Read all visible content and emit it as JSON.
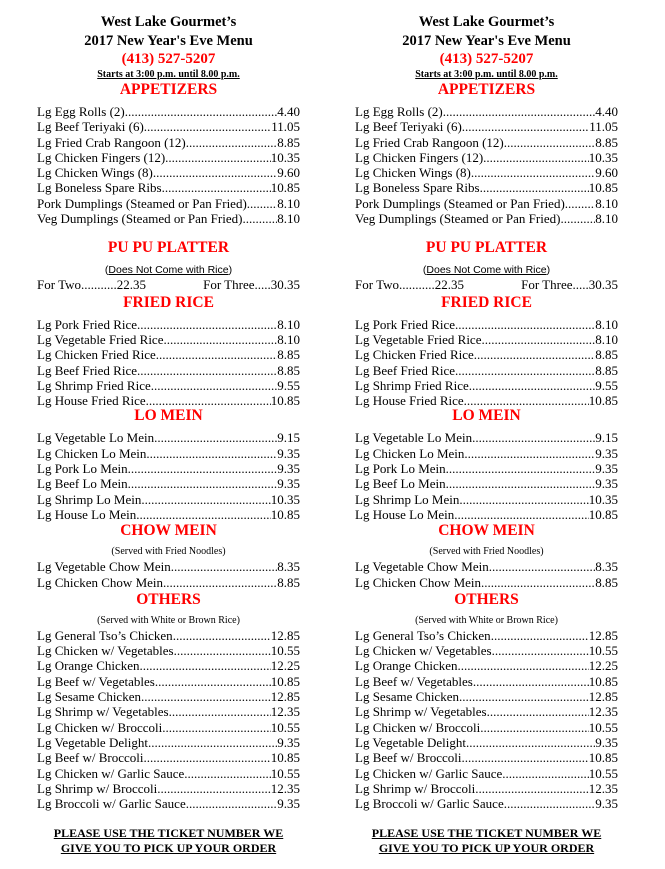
{
  "header": {
    "title_line1": "West Lake Gourmet’s",
    "title_line2": "2017 New Year's Eve Menu",
    "phone": "(413) 527-5207",
    "hours": "Starts at 3:00 p.m. until 8.00 p.m."
  },
  "colors": {
    "heading": "#ff0000",
    "text": "#000000"
  },
  "appetizers": {
    "heading": "APPETIZERS",
    "items": [
      {
        "name": "Lg Egg Rolls (2) ",
        "price": "4.40"
      },
      {
        "name": "Lg Beef Teriyaki (6) ",
        "price": "11.05"
      },
      {
        "name": "Lg Fried Crab Rangoon (12) ",
        "price": "8.85"
      },
      {
        "name": "Lg Chicken Fingers (12) ",
        "price": "10.35"
      },
      {
        "name": "Lg Chicken Wings (8) ",
        "price": "9.60"
      },
      {
        "name": "Lg Boneless Spare Ribs",
        "price": "10.85"
      },
      {
        "name": "Pork Dumplings (Steamed or Pan Fried) ",
        "price": " 8.10"
      },
      {
        "name": "Veg Dumplings (Steamed or Pan Fried) ",
        "price": " 8.10"
      }
    ]
  },
  "pupu": {
    "heading": "PU PU PLATTER",
    "note": "Does Not Come with Rice",
    "two_label": "For Two",
    "two_price": "22.35",
    "three_label": "For Three",
    "three_price": "30.35"
  },
  "fried_rice": {
    "heading": "FRIED RICE",
    "items": [
      {
        "name": "Lg Pork Fried Rice",
        "price": "8.10"
      },
      {
        "name": "Lg Vegetable Fried Rice",
        "price": "8.10"
      },
      {
        "name": "Lg Chicken Fried Rice",
        "price": "8.85"
      },
      {
        "name": "Lg Beef Fried Rice",
        "price": "8.85"
      },
      {
        "name": "Lg Shrimp Fried Rice",
        "price": "9.55"
      },
      {
        "name": "Lg House Fried Rice",
        "price": "10.85"
      }
    ]
  },
  "lo_mein": {
    "heading": "LO MEIN",
    "items": [
      {
        "name": "Lg Vegetable Lo Mein",
        "price": "9.15"
      },
      {
        "name": "Lg Chicken Lo Mein",
        "price": "9.35"
      },
      {
        "name": "Lg Pork Lo Mein",
        "price": "9.35"
      },
      {
        "name": "Lg Beef Lo Mein",
        "price": "9.35"
      },
      {
        "name": "Lg Shrimp Lo Mein",
        "price": "10.35"
      },
      {
        "name": "Lg House Lo Mein",
        "price": "10.85"
      }
    ]
  },
  "chow_mein": {
    "heading": "CHOW MEIN",
    "note": "(Served with Fried Noodles)",
    "items": [
      {
        "name": "Lg Vegetable Chow Mein",
        "price": "8.35"
      },
      {
        "name": "Lg Chicken Chow Mein",
        "price": "8.85"
      }
    ]
  },
  "others": {
    "heading": "OTHERS",
    "note": "(Served with White or Brown Rice)",
    "items": [
      {
        "name": "Lg General Tso’s Chicken",
        "price": "12.85"
      },
      {
        "name": "Lg Chicken w/ Vegetables",
        "price": "10.55"
      },
      {
        "name": "Lg Orange Chicken",
        "price": "12.25"
      },
      {
        "name": "Lg Beef w/ Vegetables",
        "price": "10.85"
      },
      {
        "name": "Lg Sesame Chicken",
        "price": "12.85"
      },
      {
        "name": "Lg Shrimp w/ Vegetables",
        "price": "12.35"
      },
      {
        "name": "Lg Chicken w/ Broccoli",
        "price": "10.55"
      },
      {
        "name": "Lg Vegetable Delight",
        "price": "9.35"
      },
      {
        "name": "Lg Beef w/ Broccoli",
        "price": "10.85"
      },
      {
        "name": "Lg Chicken w/ Garlic Sauce",
        "price": "10.55"
      },
      {
        "name": "Lg Shrimp w/ Broccoli",
        "price": "12.35"
      },
      {
        "name": "Lg Broccoli w/ Garlic Sauce",
        "price": "9.35"
      }
    ]
  },
  "footer": {
    "line1": "PLEASE USE THE TICKET NUMBER WE",
    "line2": "GIVE YOU TO PICK UP YOUR ORDER"
  }
}
